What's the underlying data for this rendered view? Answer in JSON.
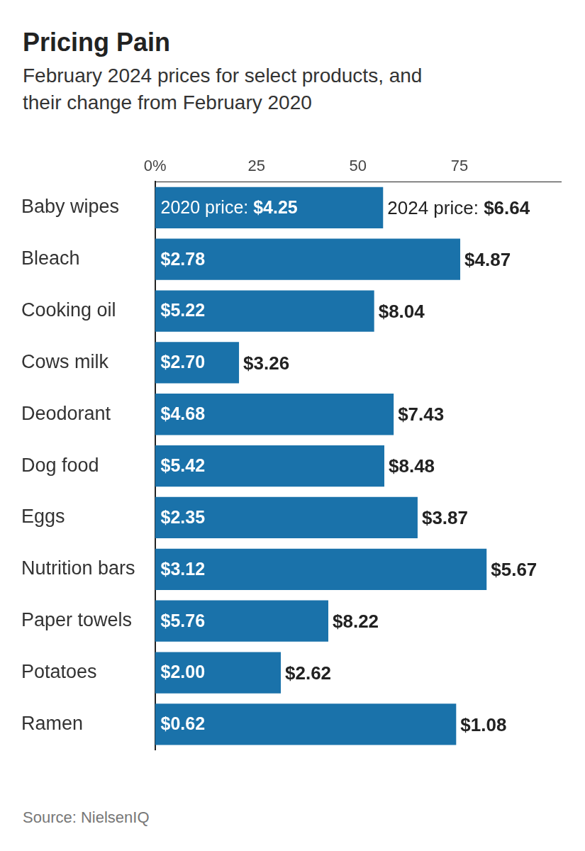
{
  "chart_data": {
    "type": "bar",
    "title": "Pricing Pain",
    "subtitle": "February 2024 prices for select products, and their change from February 2020",
    "source": "Source: NielsenIQ",
    "orientation": "horizontal",
    "categories": [
      "Baby wipes",
      "Bleach",
      "Cooking oil",
      "Cows milk",
      "Deodorant",
      "Dog food",
      "Eggs",
      "Nutrition bars",
      "Paper towels",
      "Potatoes",
      "Ramen"
    ],
    "values": [
      56.2,
      75.2,
      54.0,
      20.7,
      58.8,
      56.5,
      64.7,
      81.7,
      42.7,
      31.0,
      74.2
    ],
    "labels_2020": [
      "2020 price: $4.25",
      "$2.78",
      "$5.22",
      "$2.70",
      "$4.68",
      "$5.42",
      "$2.35",
      "$3.12",
      "$5.76",
      "$2.00",
      "$0.62"
    ],
    "labels_2024": [
      "2024 price: $6.64",
      "$4.87",
      "$8.04",
      "$3.26",
      "$7.43",
      "$8.48",
      "$3.87",
      "$5.67",
      "$8.22",
      "$2.62",
      "$1.08"
    ],
    "color": "#1a72aa",
    "xlim": [
      0,
      100
    ],
    "xticks": [
      {
        "value": 0,
        "label": "0%"
      },
      25,
      50,
      75
    ],
    "grid": false
  }
}
